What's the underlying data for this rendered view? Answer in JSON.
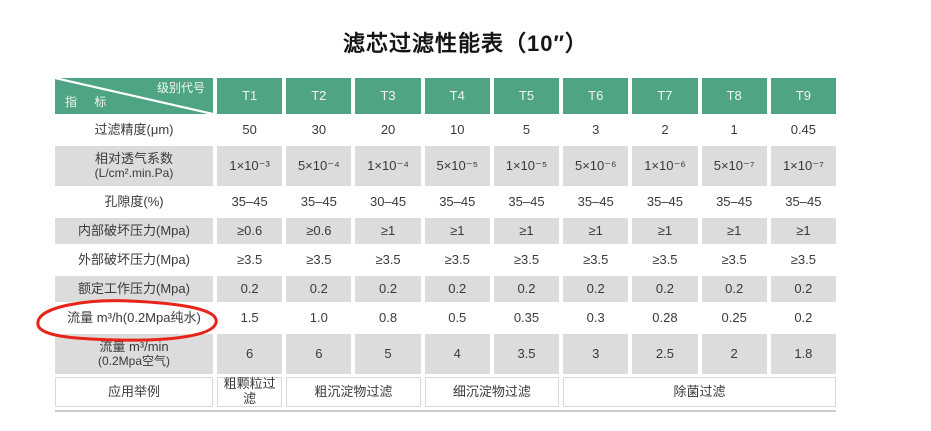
{
  "title": "滤芯过滤性能表（10″）",
  "colors": {
    "header_green": "#4fa583",
    "stripe_gray": "#dcdcdc",
    "text_dark": "#3a3a3a",
    "annotation_red": "#e8231a",
    "rule_gray": "#cccccc"
  },
  "table": {
    "corner": {
      "top_right": "级别代号",
      "bottom_left": "指 标"
    },
    "columns": [
      "T1",
      "T2",
      "T3",
      "T4",
      "T5",
      "T6",
      "T7",
      "T8",
      "T9"
    ],
    "rows": [
      {
        "label": "过滤精度(μm)",
        "shade": false,
        "values": [
          "50",
          "30",
          "20",
          "10",
          "5",
          "3",
          "2",
          "1",
          "0.45"
        ]
      },
      {
        "label": "相对透气系数",
        "label2": "(L/cm².min.Pa)",
        "shade": true,
        "values": [
          "1×10⁻³",
          "5×10⁻⁴",
          "1×10⁻⁴",
          "5×10⁻⁵",
          "1×10⁻⁵",
          "5×10⁻⁶",
          "1×10⁻⁶",
          "5×10⁻⁷",
          "1×10⁻⁷"
        ]
      },
      {
        "label": "孔隙度(%)",
        "shade": false,
        "values": [
          "35–45",
          "35–45",
          "30–45",
          "35–45",
          "35–45",
          "35–45",
          "35–45",
          "35–45",
          "35–45"
        ]
      },
      {
        "label": "内部破坏压力(Mpa)",
        "shade": true,
        "values": [
          "≥0.6",
          "≥0.6",
          "≥1",
          "≥1",
          "≥1",
          "≥1",
          "≥1",
          "≥1",
          "≥1"
        ]
      },
      {
        "label": "外部破坏压力(Mpa)",
        "shade": false,
        "values": [
          "≥3.5",
          "≥3.5",
          "≥3.5",
          "≥3.5",
          "≥3.5",
          "≥3.5",
          "≥3.5",
          "≥3.5",
          "≥3.5"
        ]
      },
      {
        "label": "额定工作压力(Mpa)",
        "shade": true,
        "values": [
          "0.2",
          "0.2",
          "0.2",
          "0.2",
          "0.2",
          "0.2",
          "0.2",
          "0.2",
          "0.2"
        ]
      },
      {
        "label": "流量 m³/h(0.2Mpa纯水)",
        "shade": false,
        "circled": true,
        "values": [
          "1.5",
          "1.0",
          "0.8",
          "0.5",
          "0.35",
          "0.3",
          "0.28",
          "0.25",
          "0.2"
        ]
      },
      {
        "label": "流量 m³/min",
        "label2": "(0.2Mpa空气)",
        "shade": true,
        "values": [
          "6",
          "6",
          "5",
          "4",
          "3.5",
          "3",
          "2.5",
          "2",
          "1.8"
        ]
      },
      {
        "label": "应用举例",
        "shade": false,
        "spans": [
          {
            "text": "粗颗粒过滤",
            "cols": 1
          },
          {
            "text": "粗沉淀物过滤",
            "cols": 2
          },
          {
            "text": "细沉淀物过滤",
            "cols": 2
          },
          {
            "text": "除菌过滤",
            "cols": 4
          }
        ]
      }
    ]
  }
}
